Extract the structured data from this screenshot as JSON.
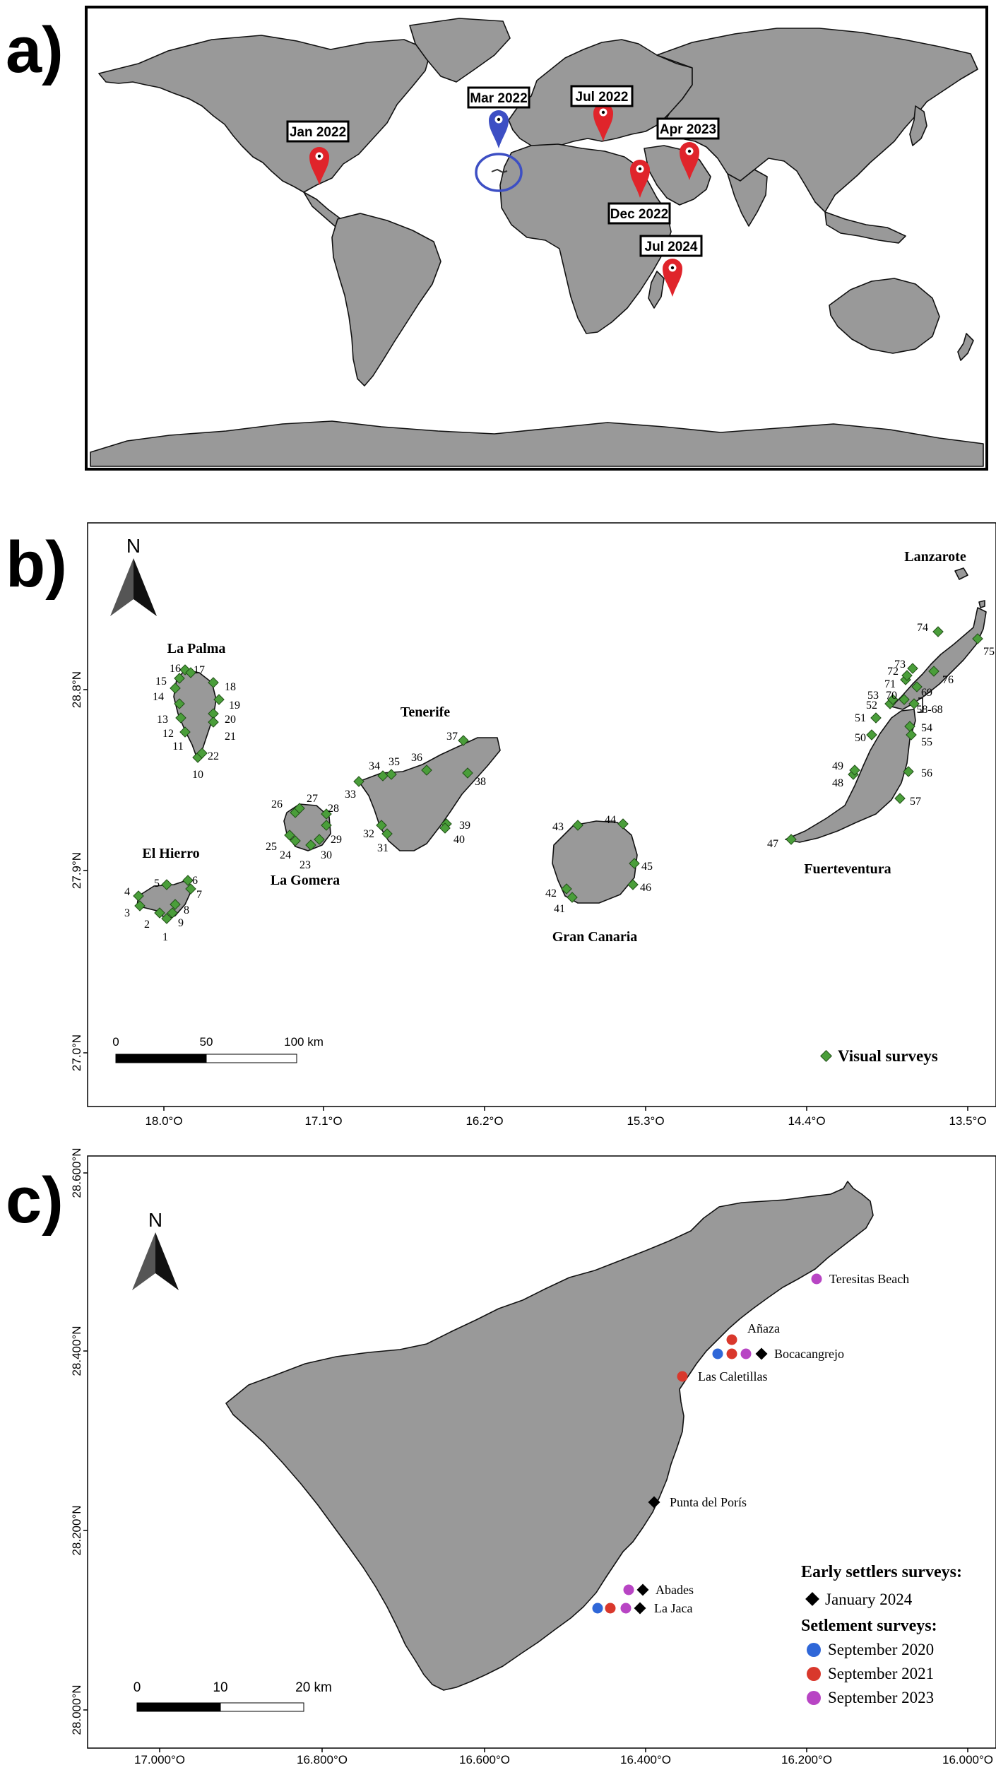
{
  "panel_a": {
    "letter": "a)",
    "pins": [
      {
        "label": "Jan 2022",
        "color": "#e0242b"
      },
      {
        "label": "Mar 2022",
        "color": "#3d4fc4"
      },
      {
        "label": "Jul 2022",
        "color": "#e0242b"
      },
      {
        "label": "Apr 2023",
        "color": "#e0242b"
      },
      {
        "label": "Dec 2022",
        "color": "#e0242b"
      },
      {
        "label": "Jul 2024",
        "color": "#e0242b"
      }
    ],
    "highlight_circle_color": "#3d4fc4"
  },
  "panel_b": {
    "letter": "b)",
    "north": "N",
    "lat_ticks": [
      "28.8°N",
      "27.9°N",
      "27.0°N"
    ],
    "lon_ticks": [
      "18.0°O",
      "17.1°O",
      "16.2°O",
      "15.3°O",
      "14.4°O",
      "13.5°O"
    ],
    "islands": [
      "La Palma",
      "Tenerife",
      "La Gomera",
      "El Hierro",
      "Gran Canaria",
      "Fuerteventura",
      "Lanzarote"
    ],
    "scale": {
      "labels": [
        "0",
        "50",
        "100 km"
      ]
    },
    "legend": {
      "label": "Visual surveys",
      "color": "#4a9e3a"
    },
    "sites": [
      "1",
      "2",
      "3",
      "4",
      "5",
      "6",
      "7",
      "8",
      "9",
      "10",
      "11",
      "12",
      "13",
      "14",
      "15",
      "16",
      "17",
      "18",
      "19",
      "20",
      "21",
      "22",
      "23",
      "24",
      "25",
      "26",
      "27",
      "28",
      "29",
      "30",
      "31",
      "32",
      "33",
      "34",
      "35",
      "36",
      "37",
      "38",
      "39",
      "40",
      "41",
      "42",
      "43",
      "44",
      "45",
      "46",
      "47",
      "48",
      "49",
      "50",
      "51",
      "52",
      "53",
      "54",
      "55",
      "56",
      "57",
      "58-68",
      "69",
      "70",
      "71",
      "72",
      "73",
      "74",
      "75",
      "76"
    ]
  },
  "panel_c": {
    "letter": "c)",
    "north": "N",
    "lat_ticks": [
      "28.600°N",
      "28.400°N",
      "28.200°N",
      "28.000°N"
    ],
    "lon_ticks": [
      "17.000°O",
      "16.800°O",
      "16.600°O",
      "16.400°O",
      "16.200°O",
      "16.000°O"
    ],
    "scale": {
      "labels": [
        "0",
        "10",
        "20 km"
      ]
    },
    "locations": [
      "Teresitas Beach",
      "Añaza",
      "Bocacangrejo",
      "Las Caletillas",
      "Punta del Porís",
      "Abades",
      "La Jaca"
    ],
    "legend": {
      "early_heading": "Early settlers surveys:",
      "early_item": "January 2024",
      "settlement_heading": "Setlement surveys:",
      "settlement_items": [
        {
          "label": "September 2020",
          "color": "#2f67d8"
        },
        {
          "label": "September 2021",
          "color": "#d9382c"
        },
        {
          "label": "September 2023",
          "color": "#b845c4"
        }
      ]
    }
  }
}
